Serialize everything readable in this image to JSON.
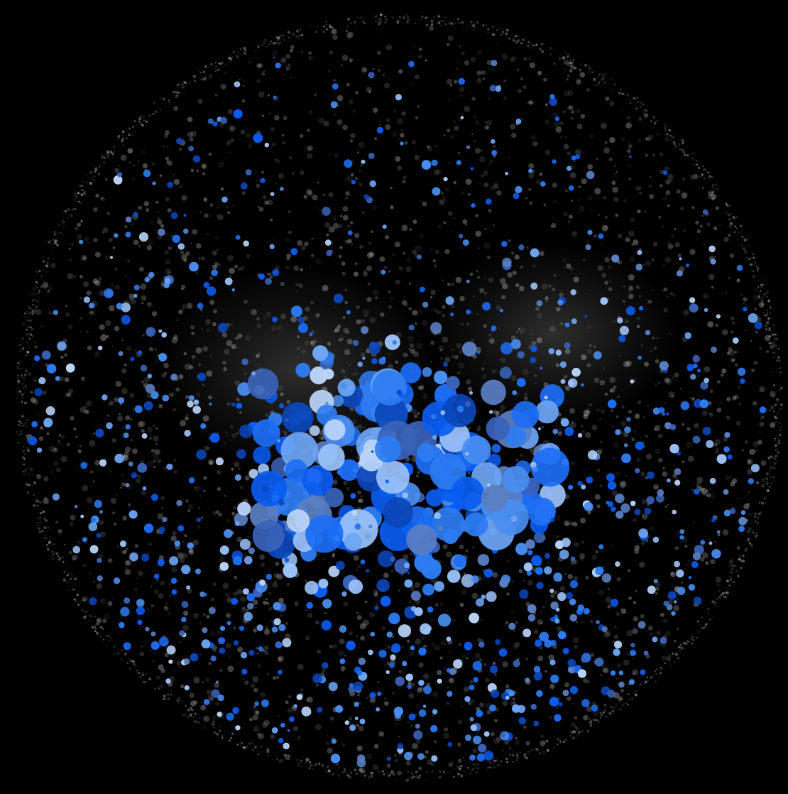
{
  "scene": {
    "description_kind": "visualization",
    "background_color": "#000000",
    "layers": [
      {
        "name": "grey-particle-sphere",
        "color": "#ffffff",
        "opacity_range": [
          0.05,
          0.35
        ]
      },
      {
        "name": "blue-bubble-cluster",
        "palette": [
          "#0a5cf0",
          "#1d6ef5",
          "#2e7cf2",
          "#4a8ef0",
          "#6ea6f5",
          "#9cc3fa",
          "#bcd6fb",
          "#0b46b8",
          "#3a63b8",
          "#5a7fc2"
        ]
      }
    ]
  }
}
